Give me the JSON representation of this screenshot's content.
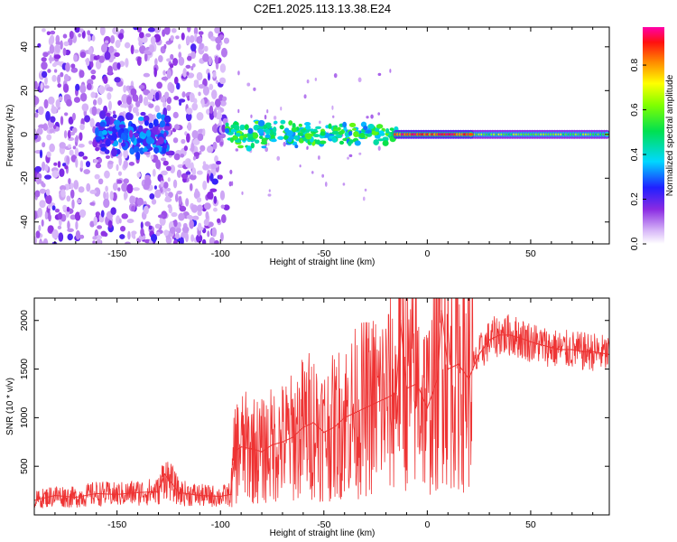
{
  "title": "C2E1.2025.113.13.38.E24",
  "chart_data": [
    {
      "type": "heatmap",
      "xlabel": "Height of straight line (km)",
      "ylabel": "Frequency (Hz)",
      "xlim": [
        -190,
        88
      ],
      "ylim": [
        -50,
        49
      ],
      "xticks": [
        -150,
        -100,
        -50,
        0,
        50
      ],
      "yticks": [
        -40,
        -20,
        0,
        20,
        40
      ],
      "colorbar": {
        "label": "Normalized spectral amplitude",
        "range": [
          0,
          0.97
        ],
        "ticks": [
          "0.0",
          "0.2",
          "0.4",
          "0.6",
          "0.8"
        ],
        "tick_values": [
          0,
          0.2,
          0.4,
          0.6,
          0.8
        ],
        "colormap": "rainbow (white - violet - blue - cyan - green - yellow - orange - red - magenta)"
      },
      "features": [
        {
          "description": "broadband scattered noise",
          "x_range": [
            -190,
            -97
          ],
          "y_range": [
            -50,
            49
          ],
          "amplitude": [
            0.05,
            0.25
          ]
        },
        {
          "description": "concentrated band near 0 Hz",
          "x_range": [
            -160,
            -125
          ],
          "y_range": [
            -10,
            10
          ],
          "amplitude": [
            0.15,
            0.35
          ]
        },
        {
          "description": "narrowing band",
          "x_range": [
            -97,
            -15
          ],
          "y_range": [
            -8,
            8
          ],
          "amplitude": [
            0.3,
            0.6
          ]
        },
        {
          "description": "strong narrow line",
          "x_range": [
            -15,
            22
          ],
          "y_range": [
            -2,
            2
          ],
          "amplitude": [
            0.8,
            0.95
          ]
        },
        {
          "description": "steady narrow line",
          "x_range": [
            22,
            88
          ],
          "y_range": [
            -2,
            2
          ],
          "amplitude": [
            0.5,
            0.7
          ]
        }
      ]
    },
    {
      "type": "line",
      "xlabel": "Height of straight line (km)",
      "ylabel": "SNR (10 * v/v)",
      "xlim": [
        -190,
        88
      ],
      "ylim": [
        0,
        2230
      ],
      "xticks": [
        -150,
        -100,
        -50,
        0,
        50
      ],
      "yticks": [
        500,
        1000,
        1500,
        2000
      ],
      "color": "#ee3333",
      "series": [
        {
          "x": [
            -190,
            -180,
            -170,
            -160,
            -150,
            -140,
            -130,
            -127,
            -120,
            -110,
            -100,
            -95,
            -93,
            -90,
            -85,
            -80,
            -75,
            -70,
            -65,
            -60,
            -55,
            -50,
            -45,
            -40,
            -35,
            -30,
            -25,
            -20,
            -15,
            -13,
            -10,
            -5,
            0,
            5,
            7,
            10,
            15,
            20,
            25,
            30,
            35,
            40,
            45,
            50,
            55,
            60,
            65,
            70,
            75,
            80,
            88
          ],
          "y": [
            150,
            200,
            180,
            220,
            210,
            230,
            240,
            420,
            230,
            200,
            190,
            210,
            650,
            700,
            680,
            650,
            720,
            750,
            800,
            900,
            950,
            850,
            900,
            1000,
            1050,
            1100,
            1150,
            1200,
            1250,
            2000,
            1300,
            1350,
            1100,
            1400,
            2100,
            1500,
            1550,
            1400,
            1650,
            1800,
            1850,
            1850,
            1820,
            1780,
            1750,
            1720,
            1700,
            1700,
            1680,
            1680,
            1650
          ]
        }
      ]
    }
  ]
}
